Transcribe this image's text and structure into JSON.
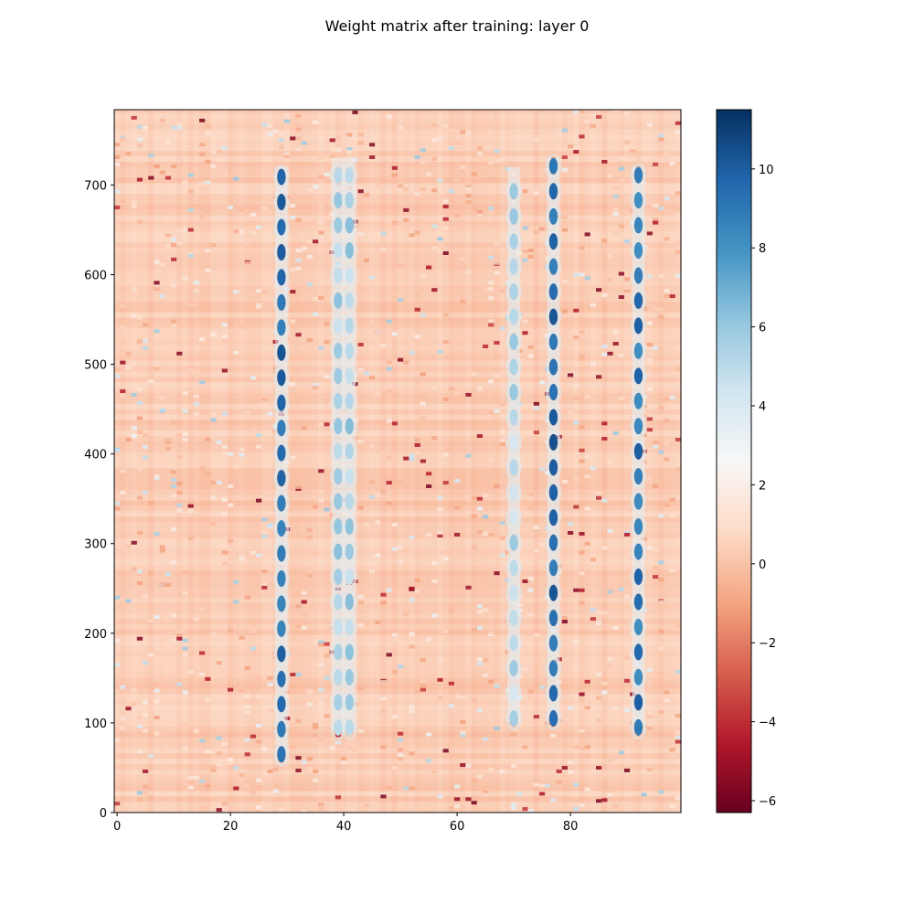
{
  "chart_data": {
    "type": "heatmap",
    "title": "Weight matrix after training: layer 0",
    "xlabel": "",
    "ylabel": "",
    "x_range": [
      0,
      99
    ],
    "y_range": [
      0,
      784
    ],
    "x_ticks": [
      0,
      20,
      40,
      60,
      80
    ],
    "y_ticks": [
      0,
      100,
      200,
      300,
      400,
      500,
      600,
      700
    ],
    "colormap": "RdBu",
    "color_range": [
      -6.3,
      11.5
    ],
    "colorbar_ticks": [
      -6,
      -4,
      -2,
      0,
      2,
      4,
      6,
      8,
      10
    ],
    "colorbar_tick_labels": [
      "−6",
      "−4",
      "−2",
      "0",
      "2",
      "4",
      "6",
      "8",
      "10"
    ],
    "background_value": 0.4,
    "high_weight_columns": [
      {
        "column": 29,
        "y_from": 60,
        "y_to": 720,
        "peak": 10.5
      },
      {
        "column": 39,
        "y_from": 90,
        "y_to": 730,
        "peak": 6.5
      },
      {
        "column": 41,
        "y_from": 90,
        "y_to": 730,
        "peak": 6.5
      },
      {
        "column": 70,
        "y_from": 100,
        "y_to": 720,
        "peak": 6.0
      },
      {
        "column": 77,
        "y_from": 100,
        "y_to": 730,
        "peak": 10.5
      },
      {
        "column": 92,
        "y_from": 90,
        "y_to": 720,
        "peak": 10.0
      }
    ],
    "grid": false,
    "legend": "none"
  }
}
